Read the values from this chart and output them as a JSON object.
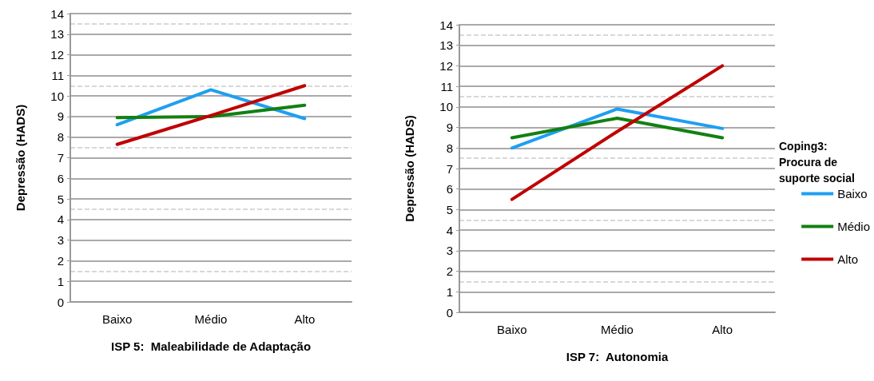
{
  "chart_data": [
    {
      "type": "line",
      "xlabel": "ISP 5:  Maleabilidade de Adaptação",
      "ylabel": "Depressão (HADS)",
      "categories": [
        "Baixo",
        "Médio",
        "Alto"
      ],
      "series": [
        {
          "color": "#1e9ff2",
          "values": [
            8.6,
            10.3,
            8.9
          ]
        },
        {
          "color": "#128012",
          "values": [
            8.95,
            9.0,
            9.55
          ]
        },
        {
          "color": "#c00000",
          "values": [
            7.65,
            9.05,
            10.5
          ]
        }
      ],
      "ylim": [
        0,
        14
      ],
      "yticks": [
        0,
        1,
        2,
        3,
        4,
        5,
        6,
        7,
        8,
        9,
        10,
        11,
        12,
        13,
        14
      ],
      "grid": "y",
      "legend": false,
      "marker": "none",
      "line_style": "solid"
    },
    {
      "type": "line",
      "xlabel": "ISP 7:  Autonomia",
      "ylabel": "Depressão (HADS)",
      "legend_title": "Coping3: Procura de suporte social",
      "categories": [
        "Baixo",
        "Médio",
        "Alto"
      ],
      "series": [
        {
          "name": "Baixo",
          "color": "#1e9ff2",
          "values": [
            8.0,
            9.9,
            8.95
          ]
        },
        {
          "name": "Médio",
          "color": "#128012",
          "values": [
            8.5,
            9.45,
            8.5
          ]
        },
        {
          "name": "Alto",
          "color": "#c00000",
          "values": [
            5.5,
            8.8,
            12.0
          ]
        }
      ],
      "ylim": [
        0,
        14
      ],
      "yticks": [
        0,
        1,
        2,
        3,
        4,
        5,
        6,
        7,
        8,
        9,
        10,
        11,
        12,
        13,
        14
      ],
      "grid": "y",
      "legend": "right",
      "marker": "none",
      "line_style": "solid"
    }
  ]
}
